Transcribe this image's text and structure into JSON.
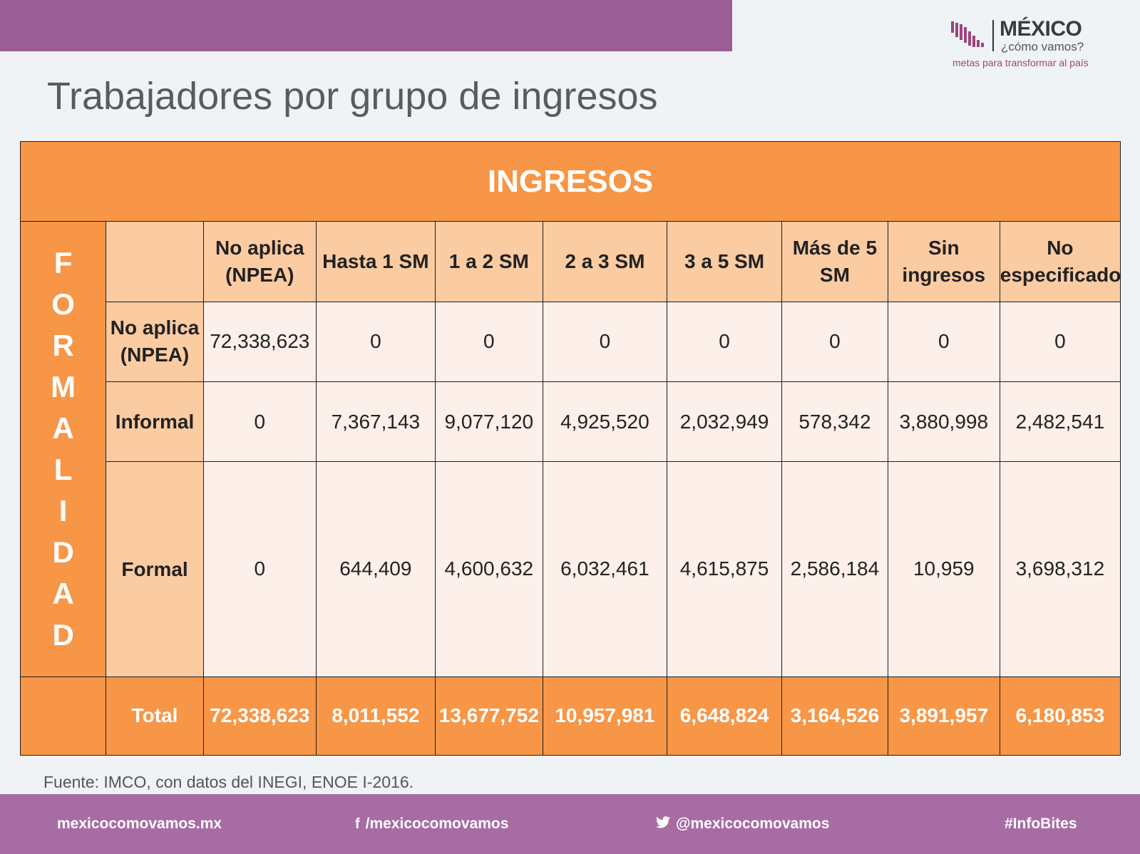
{
  "header": {
    "logo": {
      "brand": "MÉXICO",
      "sub": "¿cómo vamos?",
      "tagline": "metas para transformar al país"
    },
    "title": "Trabajadores por grupo de ingresos"
  },
  "table": {
    "top_header": "INGRESOS",
    "side_header_letters": [
      "F",
      "O",
      "R",
      "M",
      "A",
      "L",
      "I",
      "D",
      "A",
      "D"
    ],
    "columns": [
      "No aplica (NPEA)",
      "Hasta 1 SM",
      "1 a 2 SM",
      "2 a 3 SM",
      "3 a 5 SM",
      "Más de 5 SM",
      "Sin ingresos",
      "No especificado"
    ],
    "rows": [
      {
        "label": "No aplica (NPEA)",
        "values": [
          "72,338,623",
          "0",
          "0",
          "0",
          "0",
          "0",
          "0",
          "0"
        ]
      },
      {
        "label": "Informal",
        "values": [
          "0",
          "7,367,143",
          "9,077,120",
          "4,925,520",
          "2,032,949",
          "578,342",
          "3,880,998",
          "2,482,541"
        ]
      },
      {
        "label": "Formal",
        "values": [
          "0",
          "644,409",
          "4,600,632",
          "6,032,461",
          "4,615,875",
          "2,586,184",
          "10,959",
          "3,698,312"
        ]
      }
    ],
    "total": {
      "label": "Total",
      "values": [
        "72,338,623",
        "8,011,552",
        "13,677,752",
        "10,957,981",
        "6,648,824",
        "3,164,526",
        "3,891,957",
        "6,180,853"
      ]
    }
  },
  "source": "Fuente: IMCO, con datos del INEGI, ENOE I-2016.",
  "footer": {
    "website": "mexicocomovamos.mx",
    "facebook": "/mexicocomovamos",
    "twitter": "@mexicocomovamos",
    "hashtag": "#InfoBites"
  },
  "colors": {
    "brand_purple": "#9c5e97",
    "orange": "#f79646",
    "light_orange": "#fbcba2",
    "cell_pink": "#fdefe9"
  }
}
